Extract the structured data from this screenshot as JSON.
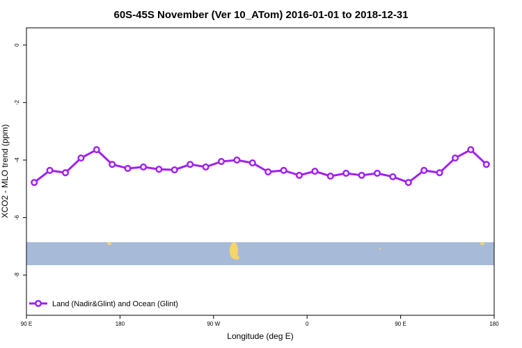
{
  "chart_data": {
    "type": "line",
    "title": "60S-45S November (Ver 10_ATom)   2016-01-01 to 2018-12-31",
    "xlabel": "Longitude (deg E)",
    "ylabel": "XCO2 - MLO trend (ppm)",
    "x": [
      97.5,
      112.5,
      127.5,
      142.5,
      157.5,
      172.5,
      187.5,
      202.5,
      217.5,
      232.5,
      247.5,
      262.5,
      277.5,
      292.5,
      307.5,
      322.5,
      337.5,
      352.5,
      367.5,
      382.5,
      397.5,
      412.5,
      427.5,
      442.5,
      457.5,
      472.5,
      487.5,
      502.5,
      517.5,
      532.5
    ],
    "series": [
      {
        "name": "Land (Nadir&Glint) and Ocean (Glint)",
        "color": "#a020f0",
        "values": [
          -4.78,
          -4.36,
          -4.44,
          -3.93,
          -3.64,
          -4.15,
          -4.29,
          -4.24,
          -4.32,
          -4.34,
          -4.15,
          -4.24,
          -4.05,
          -4.0,
          -4.1,
          -4.41,
          -4.36,
          -4.53,
          -4.39,
          -4.56,
          -4.46,
          -4.53,
          -4.46,
          -4.58,
          -4.78,
          -4.36,
          -4.44,
          -3.93,
          -3.64,
          -4.15
        ]
      }
    ],
    "xlim": [
      90,
      540
    ],
    "xticks": [
      {
        "value": 90,
        "label": "90 E"
      },
      {
        "value": 180,
        "label": "180"
      },
      {
        "value": 270,
        "label": "90 W"
      },
      {
        "value": 360,
        "label": "0"
      },
      {
        "value": 450,
        "label": "90 E"
      },
      {
        "value": 540,
        "label": "180"
      }
    ],
    "ylim": [
      -9.4,
      0.6
    ],
    "yticks": [
      0,
      -2,
      -4,
      -6,
      -8
    ],
    "legend": "bottom-left"
  }
}
